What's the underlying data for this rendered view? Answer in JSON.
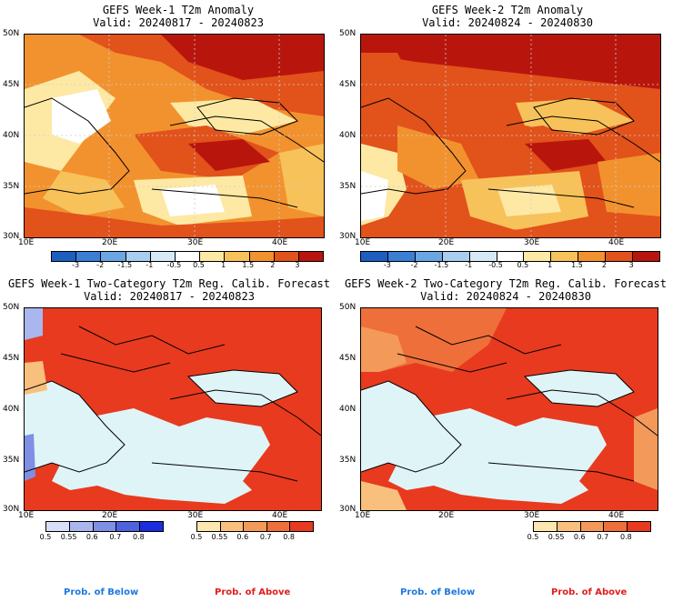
{
  "panels": [
    {
      "title1": "GEFS Week-1 T2m Anomaly",
      "title2": "Valid: 20240817 - 20240823"
    },
    {
      "title1": "GEFS Week-2 T2m Anomaly",
      "title2": "Valid: 20240824 - 20240830"
    },
    {
      "title1": "GEFS Week-1 Two-Category T2m Reg. Calib. Forecast",
      "title2": "Valid: 20240817 - 20240823"
    },
    {
      "title1": "GEFS Week-2 Two-Category T2m Reg. Calib. Forecast",
      "title2": "Valid: 20240824 - 20240830"
    }
  ],
  "lat_labels": [
    "50N",
    "45N",
    "40N",
    "35N",
    "30N"
  ],
  "lon_labels": [
    "10E",
    "20E",
    "30E",
    "40E"
  ],
  "anomaly_colorbar": {
    "labels": [
      "-3",
      "-2",
      "-1.5",
      "-1",
      "-0.5",
      "0.5",
      "1",
      "1.5",
      "2",
      "3"
    ],
    "colors": [
      "#1d5fc0",
      "#3a7fd4",
      "#6aa6e3",
      "#a9cdee",
      "#d6e9f7",
      "#ffffff",
      "#fde9a4",
      "#f8c25a",
      "#f2922e",
      "#e2521b",
      "#b8160c"
    ]
  },
  "prob_below_colorbar": {
    "labels": [
      "0.5",
      "0.55",
      "0.6",
      "0.7",
      "0.8"
    ],
    "colors": [
      "#d8def7",
      "#aab6ee",
      "#7f8fe6",
      "#4e62dd",
      "#1a2ee0"
    ]
  },
  "prob_above_colorbar": {
    "labels": [
      "0.5",
      "0.55",
      "0.6",
      "0.7",
      "0.8"
    ],
    "colors": [
      "#fde6b0",
      "#f8c07c",
      "#f39a5a",
      "#ef6f3a",
      "#e83a1f"
    ]
  },
  "prob_below_label": "Prob. of Below",
  "prob_above_label": "Prob. of Above",
  "colors": {
    "prob_below": "#1e78e0",
    "prob_above": "#e01e1e",
    "sea": "#dff4f7"
  }
}
